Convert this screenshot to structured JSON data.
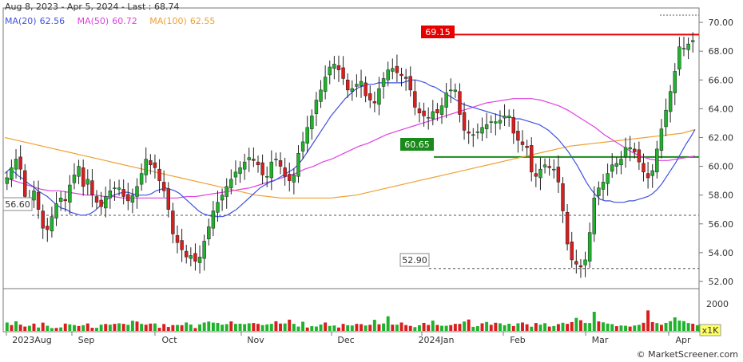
{
  "header": {
    "range": "Aug 8, 2023 - Apr 5, 2024 - Last : 68.74",
    "ma20_label": "MA(20)",
    "ma20_value": "62.56",
    "ma20_color": "#3f51e0",
    "ma50_label": "MA(50)",
    "ma50_value": "60.72",
    "ma50_color": "#e040e0",
    "ma100_label": "MA(100)",
    "ma100_value": "62.55",
    "ma100_color": "#f0a030"
  },
  "colors": {
    "up": "#1fb32c",
    "down": "#d81e1e",
    "resistance": "#e60000",
    "support": "#1a8a1a"
  },
  "levels": {
    "resistance": {
      "label": "69.15",
      "value": 69.15
    },
    "support": {
      "label": "60.65",
      "value": 60.65
    },
    "dashed_high": {
      "value": 70.5
    },
    "dashed_mid": {
      "label": "56.60",
      "value": 56.6
    },
    "dashed_low": {
      "label": "52.90",
      "value": 52.9
    }
  },
  "chart_data": {
    "type": "candlestick",
    "title": "",
    "price_axis": {
      "min": 51.5,
      "max": 71.0,
      "ticks": [
        "70.00",
        "68.00",
        "66.00",
        "64.00",
        "62.00",
        "60.00",
        "58.00",
        "56.00",
        "54.00",
        "52.00"
      ]
    },
    "volume_axis": {
      "tick": "2000",
      "unit": "x1K"
    },
    "x_labels": [
      "2023Aug",
      "Sep",
      "Oct",
      "Nov",
      "Dec",
      "2024Jan",
      "Feb",
      "Mar",
      "Apr"
    ],
    "close_prices": [
      59.2,
      59.9,
      60.5,
      59.8,
      57.9,
      57.5,
      58.3,
      57.0,
      55.7,
      55.6,
      56.5,
      57.4,
      57.8,
      57.6,
      58.7,
      59.4,
      60.0,
      58.6,
      59.1,
      58.0,
      57.5,
      57.2,
      57.9,
      58.3,
      58.5,
      58.5,
      57.9,
      57.6,
      58.0,
      58.6,
      59.5,
      60.5,
      60.1,
      59.9,
      59.0,
      58.3,
      57.0,
      55.3,
      54.7,
      54.2,
      53.7,
      53.8,
      53.4,
      53.7,
      54.8,
      55.8,
      56.9,
      57.5,
      58.0,
      58.6,
      59.1,
      59.6,
      59.9,
      60.3,
      60.6,
      60.4,
      60.1,
      59.4,
      59.3,
      60.3,
      60.5,
      60.0,
      59.3,
      59.0,
      59.4,
      60.9,
      61.7,
      62.7,
      63.5,
      64.6,
      65.3,
      66.2,
      66.9,
      67.1,
      66.7,
      66.1,
      65.3,
      65.4,
      65.7,
      65.9,
      64.9,
      64.6,
      64.4,
      65.4,
      66.1,
      66.7,
      66.8,
      66.5,
      66.3,
      66.1,
      65.3,
      64.1,
      63.7,
      63.5,
      63.4,
      63.8,
      63.7,
      64.2,
      65.1,
      65.3,
      65.3,
      63.6,
      62.5,
      62.3,
      62.2,
      62.4,
      62.7,
      62.9,
      63.1,
      63.1,
      63.2,
      63.5,
      63.5,
      62.3,
      61.8,
      61.5,
      61.3,
      59.6,
      59.3,
      59.8,
      60.1,
      59.9,
      59.8,
      58.9,
      56.9,
      54.6,
      53.5,
      53.2,
      53.0,
      53.5,
      55.4,
      57.8,
      58.5,
      58.9,
      59.5,
      60.1,
      60.2,
      60.5,
      61.3,
      61.3,
      61.0,
      60.3,
      59.6,
      59.2,
      59.7,
      61.2,
      62.6,
      63.9,
      65.2,
      66.6,
      68.3,
      68.2,
      68.5,
      68.74
    ],
    "volumes": [
      620,
      430,
      710,
      460,
      320,
      380,
      540,
      250,
      610,
      380,
      210,
      220,
      260,
      540,
      480,
      430,
      360,
      420,
      550,
      230,
      230,
      460,
      510,
      460,
      520,
      560,
      520,
      450,
      750,
      690,
      520,
      460,
      540,
      550,
      230,
      510,
      290,
      430,
      440,
      420,
      620,
      470,
      210,
      480,
      620,
      690,
      610,
      590,
      460,
      500,
      700,
      520,
      530,
      500,
      560,
      580,
      520,
      430,
      480,
      520,
      710,
      540,
      550,
      830,
      520,
      320,
      680,
      250,
      350,
      320,
      470,
      620,
      370,
      400,
      250,
      520,
      420,
      400,
      520,
      500,
      400,
      450,
      820,
      490,
      550,
      1080,
      460,
      460,
      620,
      430,
      370,
      280,
      420,
      590,
      440,
      760,
      440,
      380,
      380,
      430,
      520,
      520,
      690,
      840,
      300,
      350,
      560,
      660,
      450,
      600,
      560,
      420,
      530,
      360,
      560,
      620,
      490,
      310,
      580,
      460,
      570,
      320,
      360,
      500,
      600,
      520,
      650,
      960,
      790,
      590,
      580,
      1410,
      700,
      630,
      540,
      500,
      350,
      400,
      380,
      320,
      400,
      450,
      600,
      1510,
      650,
      580,
      450,
      590,
      720,
      1000,
      760,
      720,
      580,
      530,
      420
    ],
    "volume_direction": [
      1,
      0,
      1,
      0,
      0,
      1,
      0,
      1,
      0,
      1,
      1,
      0,
      1,
      0,
      1,
      1,
      0,
      1,
      0,
      0,
      1,
      1,
      0,
      1,
      0,
      1,
      0,
      1,
      1,
      0,
      1,
      0,
      0,
      1,
      0,
      0,
      0,
      0,
      1,
      0,
      1,
      1,
      0,
      1,
      1,
      1,
      1,
      1,
      1,
      1,
      0,
      1,
      1,
      1,
      1,
      0,
      0,
      1,
      1,
      1,
      0,
      0,
      1,
      0,
      1,
      1,
      1,
      0,
      1,
      1,
      1,
      0,
      1,
      1,
      0,
      0,
      1,
      1,
      0,
      0,
      1,
      0,
      1,
      0,
      1,
      1,
      0,
      1,
      0,
      0,
      0,
      1,
      1,
      0,
      0,
      1,
      0,
      1,
      1,
      0,
      0,
      0,
      1,
      0,
      1,
      1,
      0,
      1,
      0,
      0,
      1,
      1,
      1,
      0,
      1,
      0,
      0,
      1,
      0,
      1,
      1,
      0,
      1,
      0,
      1,
      0,
      0,
      1,
      0,
      1,
      1,
      1,
      0,
      1,
      1,
      1,
      0,
      1,
      1,
      0,
      1,
      1,
      0,
      0,
      0,
      1,
      0,
      1,
      1,
      1,
      1,
      1,
      1,
      0,
      1,
      1
    ],
    "ma20": [
      59.5,
      59.8,
      59.6,
      59.3,
      59.1,
      58.8,
      58.6,
      58.3,
      58.1,
      57.9,
      57.6,
      57.3,
      57.1,
      57.0,
      56.8,
      56.7,
      56.6,
      56.6,
      56.7,
      56.9,
      57.2,
      57.5,
      57.8,
      58.0,
      58.1,
      58.2,
      58.2,
      58.1,
      58.0,
      58.0,
      58.0,
      58.1,
      58.3,
      58.4,
      58.5,
      58.4,
      58.3,
      58.1,
      57.8,
      57.5,
      57.2,
      56.9,
      56.7,
      56.6,
      56.5,
      56.5,
      56.5,
      56.6,
      56.8,
      57.0,
      57.3,
      57.6,
      57.9,
      58.2,
      58.5,
      58.7,
      58.9,
      59.0,
      59.2,
      59.4,
      59.6,
      59.8,
      60.1,
      60.5,
      61.0,
      61.5,
      62.0,
      62.5,
      63.0,
      63.5,
      63.9,
      64.3,
      64.7,
      65.0,
      65.3,
      65.5,
      65.6,
      65.7,
      65.7,
      65.8,
      65.8,
      65.8,
      65.8,
      65.8,
      65.8,
      65.9,
      66.0,
      66.0,
      65.9,
      65.8,
      65.6,
      65.5,
      65.3,
      65.1,
      64.9,
      64.7,
      64.5,
      64.3,
      64.2,
      64.1,
      64.0,
      63.9,
      63.8,
      63.7,
      63.6,
      63.5,
      63.4,
      63.4,
      63.3,
      63.3,
      63.2,
      63.1,
      63.0,
      62.9,
      62.7,
      62.5,
      62.2,
      61.9,
      61.5,
      61.1,
      60.6,
      60.1,
      59.5,
      58.9,
      58.4,
      58.0,
      57.7,
      57.6,
      57.6,
      57.5,
      57.5,
      57.5,
      57.6,
      57.6,
      57.7,
      57.8,
      57.9,
      58.1,
      58.4,
      58.8,
      59.3,
      59.8,
      60.3,
      60.9,
      61.5,
      62.0,
      62.56
    ],
    "ma50": [
      59.2,
      59.0,
      58.8,
      58.6,
      58.4,
      58.3,
      58.3,
      58.2,
      58.1,
      58.0,
      58.0,
      57.9,
      57.9,
      57.8,
      57.8,
      57.8,
      57.8,
      57.8,
      57.8,
      57.8,
      57.9,
      57.9,
      58.0,
      58.1,
      58.2,
      58.3,
      58.4,
      58.5,
      58.7,
      58.9,
      59.1,
      59.3,
      59.5,
      59.8,
      60.0,
      60.3,
      60.5,
      60.8,
      61.1,
      61.4,
      61.6,
      61.9,
      62.2,
      62.4,
      62.6,
      62.8,
      63.0,
      63.2,
      63.4,
      63.6,
      63.8,
      64.0,
      64.2,
      64.4,
      64.5,
      64.6,
      64.7,
      64.7,
      64.7,
      64.6,
      64.4,
      64.2,
      63.9,
      63.5,
      63.1,
      62.7,
      62.2,
      61.8,
      61.4,
      61.0,
      60.7,
      60.5,
      60.4,
      60.4,
      60.5,
      60.6,
      60.72
    ],
    "ma100": [
      62.0,
      61.8,
      61.6,
      61.4,
      61.2,
      61.0,
      60.8,
      60.6,
      60.4,
      60.2,
      60.0,
      59.8,
      59.6,
      59.4,
      59.2,
      59.0,
      58.8,
      58.6,
      58.4,
      58.2,
      58.0,
      57.9,
      57.8,
      57.8,
      57.8,
      57.8,
      57.8,
      57.9,
      58.0,
      58.2,
      58.4,
      58.6,
      58.8,
      59.0,
      59.2,
      59.4,
      59.6,
      59.8,
      60.0,
      60.2,
      60.4,
      60.6,
      60.8,
      61.0,
      61.2,
      61.4,
      61.5,
      61.6,
      61.7,
      61.8,
      61.9,
      62.0,
      62.1,
      62.2,
      62.3,
      62.55
    ]
  },
  "copyright": "© MarketScreener.com"
}
